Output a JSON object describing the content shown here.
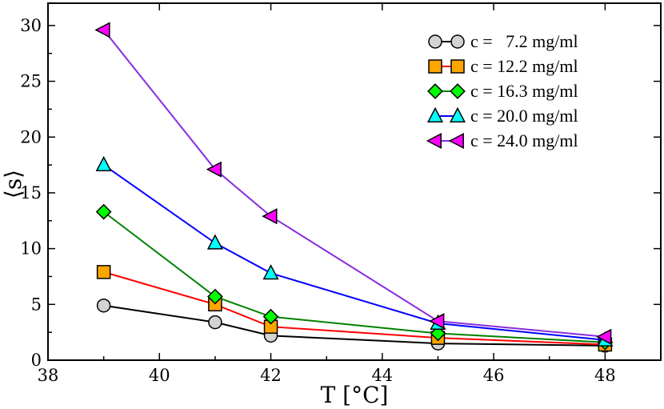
{
  "chart_data": {
    "type": "line",
    "title": "",
    "xlabel": "T [°C]",
    "ylabel": "⟨s⟩",
    "xlim": [
      38,
      49
    ],
    "ylim": [
      0,
      32
    ],
    "xticks": [
      38,
      40,
      42,
      44,
      46,
      48
    ],
    "yticks": [
      0,
      5,
      10,
      15,
      20,
      25,
      30
    ],
    "x": [
      39,
      41,
      42,
      45,
      48
    ],
    "legend_position": "top-right",
    "series": [
      {
        "name": "c =   7.2 mg/ml",
        "marker": "circle",
        "line_color": "#000000",
        "fill_color": "#d3d3d3",
        "values": [
          4.9,
          3.4,
          2.2,
          1.5,
          1.3
        ]
      },
      {
        "name": "c = 12.2 mg/ml",
        "marker": "square",
        "line_color": "#ff0000",
        "fill_color": "#ffa500",
        "values": [
          7.9,
          5.0,
          3.0,
          2.0,
          1.4
        ]
      },
      {
        "name": "c = 16.3 mg/ml",
        "marker": "diamond",
        "line_color": "#008000",
        "fill_color": "#00ff00",
        "values": [
          13.3,
          5.7,
          3.9,
          2.4,
          1.6
        ]
      },
      {
        "name": "c = 20.0 mg/ml",
        "marker": "triangle-up",
        "line_color": "#0000ff",
        "fill_color": "#00ffff",
        "values": [
          17.5,
          10.5,
          7.8,
          3.3,
          1.8
        ]
      },
      {
        "name": "c = 24.0 mg/ml",
        "marker": "triangle-left",
        "line_color": "#8a2be2",
        "fill_color": "#ff00ff",
        "values": [
          29.6,
          17.1,
          12.9,
          3.5,
          2.1
        ]
      }
    ]
  }
}
